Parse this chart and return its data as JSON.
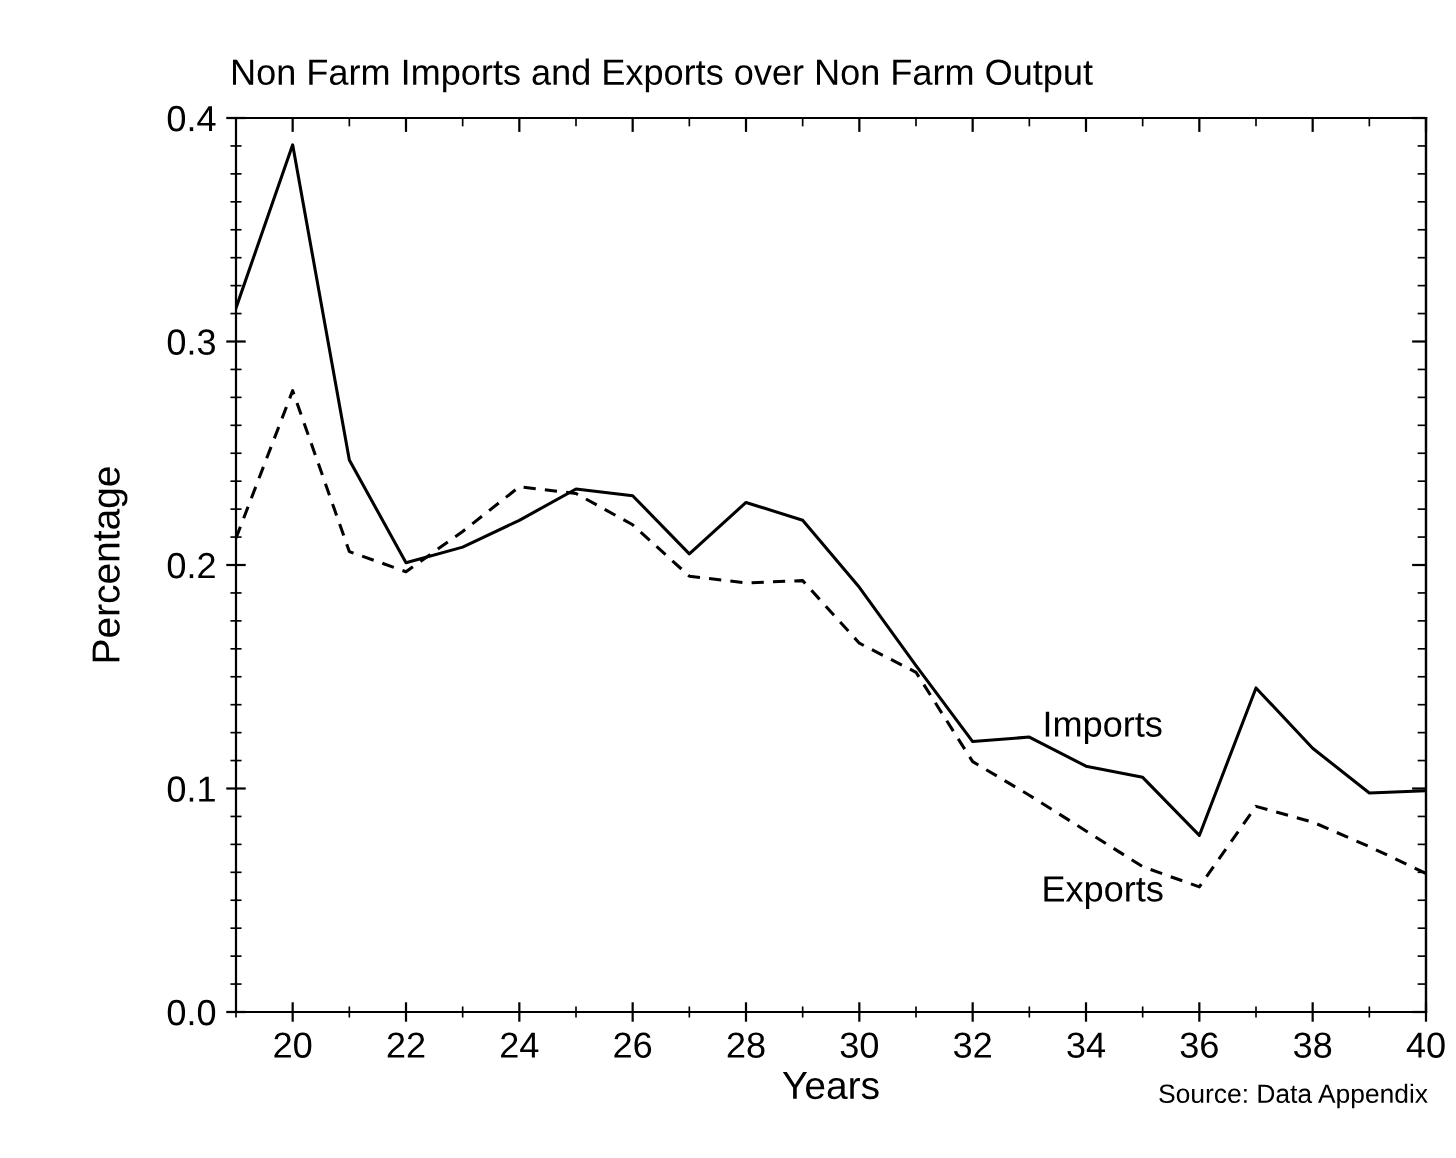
{
  "chart_data": {
    "type": "line",
    "title": "Non Farm Imports and Exports over Non Farm Output",
    "xlabel": "Years",
    "ylabel": "Percentage",
    "x": [
      19,
      20,
      21,
      22,
      23,
      24,
      25,
      26,
      27,
      28,
      29,
      30,
      31,
      32,
      33,
      34,
      35,
      36,
      37,
      38,
      39,
      40
    ],
    "series": [
      {
        "name": "Imports",
        "color": "#000000",
        "line_style": "solid",
        "values": [
          0.315,
          0.388,
          0.247,
          0.201,
          0.208,
          0.22,
          0.234,
          0.231,
          0.205,
          0.228,
          0.22,
          0.19,
          0.155,
          0.121,
          0.123,
          0.11,
          0.105,
          0.079,
          0.145,
          0.118,
          0.098,
          0.099
        ]
      },
      {
        "name": "Exports",
        "color": "#000000",
        "line_style": "dashed",
        "values": [
          0.212,
          0.278,
          0.206,
          0.197,
          0.215,
          0.235,
          0.232,
          0.218,
          0.195,
          0.192,
          0.193,
          0.165,
          0.152,
          0.112,
          0.097,
          0.081,
          0.065,
          0.056,
          0.092,
          0.085,
          0.074,
          0.062
        ]
      }
    ],
    "xlim": [
      19,
      40
    ],
    "xticks": [
      20,
      22,
      24,
      26,
      28,
      30,
      32,
      34,
      36,
      38,
      40
    ],
    "ylim": [
      0.0,
      0.4
    ],
    "yticks": [
      {
        "value": 0.0,
        "label": "0.0"
      },
      {
        "value": 0.1,
        "label": "0.1"
      },
      {
        "value": 0.2,
        "label": "0.2"
      },
      {
        "value": 0.3,
        "label": "0.3"
      },
      {
        "value": 0.4,
        "label": "0.4"
      }
    ],
    "grid": false,
    "legend": false,
    "marker": "none",
    "annotations": [
      "Source: Data Appendix"
    ]
  }
}
